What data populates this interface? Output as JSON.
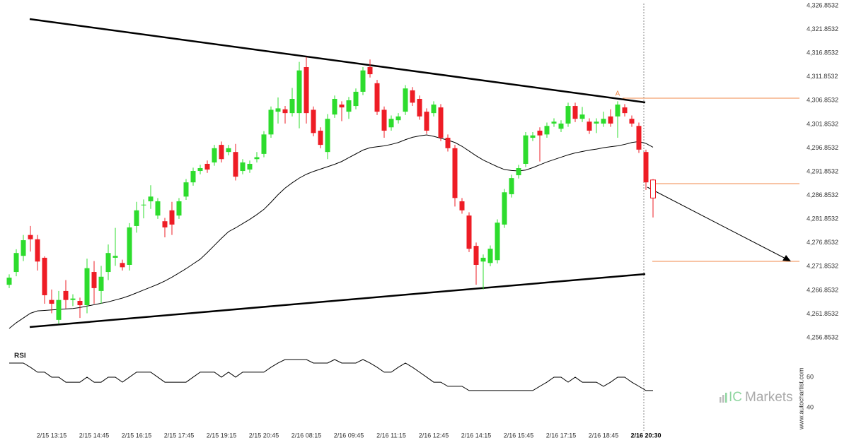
{
  "chart_data": {
    "type": "candlestick",
    "up_color": "#2ddc2d",
    "down_color": "#ee1c25",
    "ma_color": "#000000",
    "categories": [
      null,
      null,
      null,
      null,
      null,
      null,
      "2/15 13:15",
      null,
      null,
      null,
      null,
      null,
      "2/15 14:45",
      null,
      null,
      null,
      null,
      null,
      "2/15 16:15",
      null,
      null,
      null,
      null,
      null,
      "2/15 17:45",
      null,
      null,
      null,
      null,
      null,
      "2/15 19:15",
      null,
      null,
      null,
      null,
      null,
      "2/15 20:45",
      null,
      null,
      null,
      null,
      null,
      "2/16 08:15",
      null,
      null,
      null,
      null,
      null,
      "2/16 09:45",
      null,
      null,
      null,
      null,
      null,
      "2/16 11:15",
      null,
      null,
      null,
      null,
      null,
      "2/16 12:45",
      null,
      null,
      null,
      null,
      null,
      "2/16 14:15",
      null,
      null,
      null,
      null,
      null,
      "2/16 15:45",
      null,
      null,
      null,
      null,
      null,
      "2/16 17:15",
      null,
      null,
      null,
      null,
      null,
      "2/16 18:45",
      null,
      null,
      null,
      null,
      null,
      "2/16 20:30",
      null
    ],
    "open": [
      4268.0,
      4270.7,
      4274.1,
      4278.5,
      4277.6,
      4273.7,
      4264.8,
      4260.6,
      4266.7,
      4264.8,
      4264.6,
      4263.7,
      4270.7,
      4266.7,
      4270.7,
      4273.7,
      4272.6,
      4272.2,
      4280.4,
      4284.8,
      4285.6,
      4282.6,
      4281.4,
      4283.7,
      4282.6,
      4286.6,
      4289.6,
      4292.0,
      4293.5,
      4293.8,
      4297.5,
      4296.0,
      4296.0,
      4292.0,
      4292.3,
      4294.5,
      4295.6,
      4299.7,
      4304.5,
      4305.0,
      4304.2,
      4304.2,
      4313.9,
      4304.9,
      4300.5,
      4296.0,
      4303.9,
      4306.0,
      4304.5,
      4305.7,
      4308.7,
      4313.9,
      4310.5,
      4304.9,
      4301.2,
      4302.7,
      4304.5,
      4309.0,
      4307.2,
      4304.5,
      4304.2,
      4305.4,
      4299.0,
      4296.8,
      4285.6,
      4282.6,
      4276.2,
      4272.9,
      4272.6,
      4273.2,
      4280.7,
      4287.1,
      4291.1,
      4293.5,
      4299.0,
      4300.5,
      4299.7,
      4302.0,
      4300.9,
      4302.0,
      4305.7,
      4303.0,
      4302.4,
      4302.0,
      4302.0,
      4303.5,
      4303.5,
      4305.4,
      4303.0,
      4301.5,
      4296.0,
      4290.1
    ],
    "high": [
      4270.2,
      4275.5,
      4278.5,
      4280.4,
      4278.5,
      4274.0,
      4267.0,
      4266.7,
      4269.0,
      4266.0,
      4265.3,
      4273.5,
      4273.0,
      4272.0,
      4276.5,
      4280.0,
      4273.3,
      4281.0,
      4285.5,
      4286.0,
      4289.0,
      4286.3,
      4282.1,
      4285.5,
      4286.3,
      4290.3,
      4292.7,
      4293.3,
      4294.2,
      4297.5,
      4298.2,
      4297.5,
      4297.7,
      4294.5,
      4294.2,
      4296.0,
      4300.4,
      4305.6,
      4307.5,
      4305.7,
      4309.5,
      4315.0,
      4316.0,
      4305.6,
      4301.2,
      4304.0,
      4307.9,
      4306.7,
      4307.6,
      4309.4,
      4313.9,
      4315.5,
      4311.2,
      4305.6,
      4303.7,
      4304.2,
      4310.1,
      4309.7,
      4307.9,
      4305.2,
      4306.7,
      4306.1,
      4299.7,
      4297.5,
      4286.3,
      4283.3,
      4276.9,
      4274.4,
      4276.3,
      4281.8,
      4288.2,
      4291.2,
      4293.3,
      4300.2,
      4300.2,
      4301.2,
      4302.2,
      4303.1,
      4302.7,
      4306.4,
      4306.4,
      4305.5,
      4303.1,
      4303.1,
      4304.5,
      4305.0,
      4306.7,
      4306.1,
      4303.7,
      4302.2,
      4296.5,
      4290.3
    ],
    "low": [
      4267.3,
      4269.8,
      4273.0,
      4275.0,
      4271.0,
      4264.0,
      4262.0,
      4259.8,
      4263.0,
      4263.5,
      4261.0,
      4262.0,
      4264.0,
      4264.0,
      4269.0,
      4272.0,
      4271.0,
      4271.0,
      4279.0,
      4282.0,
      4284.0,
      4281.9,
      4278.0,
      4278.5,
      4281.9,
      4285.9,
      4288.9,
      4291.3,
      4291.6,
      4293.1,
      4293.8,
      4295.3,
      4290.0,
      4291.3,
      4291.6,
      4293.8,
      4294.9,
      4299.0,
      4302.0,
      4302.0,
      4303.5,
      4301.0,
      4302.0,
      4299.3,
      4296.8,
      4294.5,
      4303.2,
      4302.5,
      4303.0,
      4305.0,
      4308.0,
      4311.7,
      4303.8,
      4299.0,
      4300.5,
      4302.0,
      4303.8,
      4305.7,
      4302.8,
      4299.8,
      4303.5,
      4298.3,
      4296.1,
      4284.5,
      4283.0,
      4274.9,
      4268.0,
      4267.0,
      4271.9,
      4272.5,
      4280.0,
      4286.4,
      4290.4,
      4292.8,
      4298.3,
      4294.0,
      4299.0,
      4301.3,
      4300.2,
      4301.3,
      4302.3,
      4302.3,
      4299.8,
      4300.0,
      4301.3,
      4301.3,
      4299.0,
      4303.5,
      4301.3,
      4295.8,
      4288.0,
      4282.2
    ],
    "close": [
      4269.5,
      4274.7,
      4277.4,
      4277.6,
      4272.9,
      4265.8,
      4264.0,
      4264.8,
      4264.8,
      4265.1,
      4263.7,
      4271.5,
      4267.3,
      4269.7,
      4274.7,
      4274.1,
      4271.7,
      4280.1,
      4283.7,
      4284.9,
      4286.6,
      4285.6,
      4280.1,
      4280.7,
      4285.6,
      4289.6,
      4292.0,
      4292.6,
      4292.3,
      4296.8,
      4294.5,
      4296.8,
      4290.8,
      4293.8,
      4293.5,
      4294.9,
      4299.7,
      4304.9,
      4305.2,
      4304.2,
      4307.2,
      4313.2,
      4304.2,
      4300.0,
      4297.5,
      4303.0,
      4307.2,
      4305.4,
      4306.9,
      4308.7,
      4313.2,
      4312.4,
      4304.5,
      4300.5,
      4303.0,
      4303.5,
      4309.4,
      4306.4,
      4303.5,
      4300.5,
      4306.0,
      4299.0,
      4296.8,
      4286.3,
      4283.7,
      4275.6,
      4272.2,
      4273.7,
      4275.6,
      4281.1,
      4287.5,
      4290.5,
      4292.6,
      4299.5,
      4299.5,
      4299.5,
      4301.5,
      4302.4,
      4302.0,
      4305.7,
      4303.0,
      4303.9,
      4300.5,
      4302.4,
      4303.0,
      4302.0,
      4306.0,
      4304.2,
      4302.0,
      4296.5,
      4289.6,
      4286.3
    ],
    "ma": [
      4258.8,
      4260.0,
      4261.0,
      4262.0,
      4262.5,
      4262.6,
      4262.7,
      4262.8,
      4262.9,
      4263.0,
      4263.2,
      4263.5,
      4263.8,
      4264.1,
      4264.4,
      4264.8,
      4265.2,
      4265.7,
      4266.3,
      4266.9,
      4267.5,
      4268.1,
      4268.8,
      4269.6,
      4270.5,
      4271.4,
      4272.4,
      4273.4,
      4274.8,
      4276.3,
      4277.8,
      4279.2,
      4280.0,
      4280.9,
      4281.8,
      4282.8,
      4283.9,
      4285.4,
      4287.0,
      4288.4,
      4289.5,
      4290.5,
      4291.3,
      4291.9,
      4292.4,
      4292.9,
      4293.4,
      4294.0,
      4294.8,
      4295.6,
      4296.4,
      4296.9,
      4297.1,
      4297.3,
      4297.6,
      4298.0,
      4298.6,
      4299.1,
      4299.4,
      4299.6,
      4299.3,
      4298.9,
      4298.5,
      4298.0,
      4297.2,
      4296.2,
      4295.2,
      4294.3,
      4293.6,
      4292.9,
      4292.3,
      4292.1,
      4292.0,
      4292.2,
      4292.7,
      4293.3,
      4293.9,
      4294.4,
      4294.9,
      4295.4,
      4295.8,
      4296.1,
      4296.4,
      4296.6,
      4296.9,
      4297.1,
      4297.3,
      4297.6,
      4298.0,
      4298.2,
      4297.8,
      4297.0
    ],
    "ylim": [
      4255.07,
      4328.05
    ],
    "yticks": [
      {
        "value": 4256.8532,
        "label": "4,256.8532"
      },
      {
        "value": 4261.8532,
        "label": "4,261.8532"
      },
      {
        "value": 4266.8532,
        "label": "4,266.8532"
      },
      {
        "value": 4271.8532,
        "label": "4,271.8532"
      },
      {
        "value": 4276.8532,
        "label": "4,276.8532"
      },
      {
        "value": 4281.8532,
        "label": "4,281.8532"
      },
      {
        "value": 4286.8532,
        "label": "4,286.8532"
      },
      {
        "value": 4291.8532,
        "label": "4,291.8532"
      },
      {
        "value": 4296.8532,
        "label": "4,296.8532"
      },
      {
        "value": 4301.8532,
        "label": "4,301.8532"
      },
      {
        "value": 4306.8532,
        "label": "4,306.8532"
      },
      {
        "value": 4311.8532,
        "label": "4,311.8532"
      },
      {
        "value": 4316.8532,
        "label": "4,316.8532"
      },
      {
        "value": 4321.8532,
        "label": "4,321.8532"
      },
      {
        "value": 4326.8532,
        "label": "4,326.8532"
      }
    ],
    "annotation": "A",
    "rsi": {
      "title": "RSI",
      "values": [
        69.3,
        69.3,
        69.3,
        66.5,
        63.3,
        63.3,
        60,
        60,
        56.7,
        56.7,
        56.7,
        60,
        56.7,
        56.7,
        60,
        60,
        56.7,
        60,
        63.3,
        63.3,
        63.3,
        60,
        56.7,
        56.7,
        56.7,
        56.7,
        60,
        63.3,
        63.3,
        63.3,
        60,
        63.3,
        60,
        63.3,
        63.3,
        63.3,
        63.3,
        66.5,
        69.3,
        71.6,
        71.6,
        71.6,
        71.6,
        69.3,
        69.3,
        69.3,
        71.6,
        69.3,
        69.3,
        69.3,
        71.6,
        69.3,
        66.5,
        63.3,
        63.3,
        66.5,
        69.3,
        66.5,
        63.3,
        60,
        56.7,
        56.7,
        54,
        54,
        54,
        51.2,
        51.2,
        51.2,
        51.2,
        51.2,
        51.2,
        51.2,
        51.2,
        51.2,
        51.2,
        54,
        56.7,
        60,
        60,
        56.7,
        60,
        56.7,
        56.7,
        56.7,
        54,
        56.7,
        60,
        60,
        56.7,
        54,
        51.2,
        51.2
      ],
      "ylim": [
        27,
        78.1
      ],
      "yticks": [
        40,
        60
      ]
    },
    "watermark": {
      "prefix": "IC",
      "name": "Markets"
    },
    "source": "www.autochartist.com"
  }
}
